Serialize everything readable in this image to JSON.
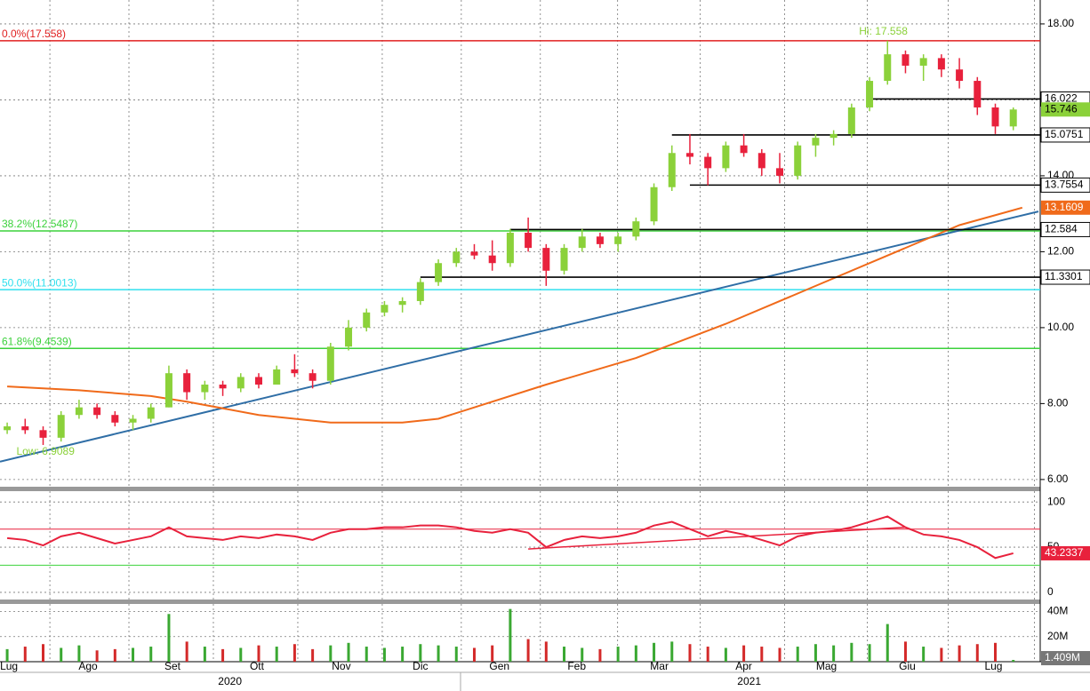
{
  "chart_data": {
    "type": "candlestick",
    "candles": [
      [
        7.3,
        7.5,
        7.2,
        7.4
      ],
      [
        7.4,
        7.6,
        7.2,
        7.3
      ],
      [
        7.3,
        7.4,
        6.91,
        7.1
      ],
      [
        7.1,
        7.8,
        7.0,
        7.7
      ],
      [
        7.7,
        8.1,
        7.6,
        7.9
      ],
      [
        7.9,
        8.0,
        7.6,
        7.7
      ],
      [
        7.7,
        7.8,
        7.4,
        7.5
      ],
      [
        7.5,
        7.7,
        7.3,
        7.6
      ],
      [
        7.6,
        8.0,
        7.5,
        7.9
      ],
      [
        7.9,
        9.0,
        7.9,
        8.8
      ],
      [
        8.8,
        8.9,
        8.1,
        8.3
      ],
      [
        8.3,
        8.6,
        8.1,
        8.5
      ],
      [
        8.5,
        8.6,
        8.2,
        8.4
      ],
      [
        8.4,
        8.8,
        8.3,
        8.7
      ],
      [
        8.7,
        8.8,
        8.4,
        8.5
      ],
      [
        8.5,
        9.0,
        8.5,
        8.9
      ],
      [
        8.9,
        9.3,
        8.7,
        8.8
      ],
      [
        8.8,
        8.9,
        8.4,
        8.6
      ],
      [
        8.6,
        9.6,
        8.5,
        9.5
      ],
      [
        9.5,
        10.2,
        9.4,
        10.0
      ],
      [
        10.0,
        10.5,
        9.9,
        10.4
      ],
      [
        10.4,
        10.7,
        10.3,
        10.6
      ],
      [
        10.6,
        10.8,
        10.4,
        10.7
      ],
      [
        10.7,
        11.3,
        10.6,
        11.2
      ],
      [
        11.2,
        11.8,
        11.1,
        11.7
      ],
      [
        11.7,
        12.1,
        11.6,
        12.0
      ],
      [
        12.0,
        12.2,
        11.8,
        11.9
      ],
      [
        11.9,
        12.3,
        11.5,
        11.7
      ],
      [
        11.7,
        12.6,
        11.6,
        12.5
      ],
      [
        12.5,
        12.9,
        12.0,
        12.1
      ],
      [
        12.1,
        12.2,
        11.1,
        11.5
      ],
      [
        11.5,
        12.2,
        11.4,
        12.1
      ],
      [
        12.1,
        12.6,
        12.0,
        12.4
      ],
      [
        12.4,
        12.5,
        12.1,
        12.2
      ],
      [
        12.2,
        12.5,
        12.0,
        12.4
      ],
      [
        12.4,
        12.9,
        12.3,
        12.8
      ],
      [
        12.8,
        13.8,
        12.7,
        13.7
      ],
      [
        13.7,
        14.8,
        13.6,
        14.6
      ],
      [
        14.6,
        15.1,
        14.3,
        14.5
      ],
      [
        14.5,
        14.6,
        13.75,
        14.2
      ],
      [
        14.2,
        14.9,
        14.1,
        14.8
      ],
      [
        14.8,
        15.1,
        14.5,
        14.6
      ],
      [
        14.6,
        14.7,
        14.0,
        14.2
      ],
      [
        14.2,
        14.6,
        13.8,
        14.0
      ],
      [
        14.0,
        14.9,
        13.9,
        14.8
      ],
      [
        14.8,
        15.1,
        14.5,
        15.0
      ],
      [
        15.0,
        15.2,
        14.8,
        15.1
      ],
      [
        15.1,
        15.9,
        15.0,
        15.8
      ],
      [
        15.8,
        16.6,
        15.7,
        16.5
      ],
      [
        16.5,
        17.558,
        16.4,
        17.2
      ],
      [
        17.2,
        17.3,
        16.7,
        16.9
      ],
      [
        16.9,
        17.2,
        16.5,
        17.1
      ],
      [
        17.1,
        17.2,
        16.6,
        16.8
      ],
      [
        16.8,
        17.1,
        16.3,
        16.5
      ],
      [
        16.5,
        16.6,
        15.6,
        15.8
      ],
      [
        15.8,
        15.9,
        15.1,
        15.3
      ],
      [
        15.3,
        15.8,
        15.2,
        15.746
      ]
    ],
    "up_color": "#8bd13a",
    "down_color": "#e8213c",
    "xlim": [
      -0.4,
      57.4
    ],
    "xticks": [
      {
        "value": 0.1,
        "label": "Lug"
      },
      {
        "value": 4.5,
        "label": "Ago"
      },
      {
        "value": 9.2,
        "label": "Set"
      },
      {
        "value": 13.9,
        "label": "Ott"
      },
      {
        "value": 18.6,
        "label": "Nov"
      },
      {
        "value": 23.0,
        "label": "Dic"
      },
      {
        "value": 27.4,
        "label": "Gen"
      },
      {
        "value": 31.7,
        "label": "Feb"
      },
      {
        "value": 36.3,
        "label": "Mar"
      },
      {
        "value": 41.0,
        "label": "Apr"
      },
      {
        "value": 45.6,
        "label": "Mag"
      },
      {
        "value": 50.1,
        "label": "Giu"
      },
      {
        "value": 54.9,
        "label": "Lug"
      }
    ],
    "years": [
      {
        "value": 12.4,
        "label": "2020"
      },
      {
        "value": 41.3,
        "label": "2021"
      }
    ],
    "ylim": [
      5.81,
      18.63
    ],
    "yticks": [
      {
        "value": 6,
        "label": "6.00"
      },
      {
        "value": 8,
        "label": "8.00"
      },
      {
        "value": 10,
        "label": "10.00"
      },
      {
        "value": 12,
        "label": "12.00"
      },
      {
        "value": 14,
        "label": "14.00"
      },
      {
        "value": 16,
        "label": "16.00"
      },
      {
        "value": 18,
        "label": "18.00"
      }
    ],
    "moving_average": {
      "color": "#f06a1a",
      "x": [
        0,
        4,
        8,
        10,
        14,
        18,
        22,
        24,
        26,
        30,
        35,
        40,
        45,
        50,
        53,
        56.5
      ],
      "values": [
        8.45,
        8.35,
        8.2,
        8.05,
        7.7,
        7.5,
        7.5,
        7.6,
        7.9,
        8.5,
        9.2,
        10.1,
        11.1,
        12.1,
        12.7,
        13.1609
      ],
      "label": "13.1609"
    },
    "trendline": {
      "color": "#2f6ea6",
      "x": [
        -0.4,
        57.4
      ],
      "values": [
        6.47,
        13.06
      ]
    },
    "fib_levels": [
      {
        "value": 17.558,
        "label": "0.0%(17.558)",
        "color": "#e02020"
      },
      {
        "value": 12.5487,
        "label": "38.2%(12.5487)",
        "color": "#3cd23c"
      },
      {
        "value": 11.0013,
        "label": "50.0%(11.0013)",
        "color": "#30e0ee"
      },
      {
        "value": 9.4539,
        "label": "61.8%(9.4539)",
        "color": "#3cd23c"
      }
    ],
    "support_levels": [
      {
        "value": 16.022,
        "label": "16.022",
        "start": 48
      },
      {
        "value": 15.0751,
        "label": "15.0751",
        "start": 37
      },
      {
        "value": 13.7554,
        "label": "13.7554",
        "start": 38
      },
      {
        "value": 12.584,
        "label": "12.584",
        "start": 28
      },
      {
        "value": 11.3301,
        "label": "11.3301",
        "start": 23
      }
    ],
    "last_price": {
      "value": 15.746,
      "label": "15.746"
    },
    "annotations": [
      {
        "text": "Hi: 17.558",
        "x": 49,
        "y": 17.558
      },
      {
        "text": "Low: 6.9089",
        "x": 2,
        "y": 6.9089
      }
    ],
    "rsi": {
      "color": "#e8213c",
      "values": [
        60,
        58,
        52,
        62,
        66,
        60,
        54,
        58,
        62,
        72,
        62,
        60,
        58,
        62,
        60,
        64,
        62,
        58,
        66,
        70,
        70,
        72,
        72,
        74,
        74,
        72,
        68,
        66,
        70,
        66,
        50,
        58,
        62,
        60,
        62,
        66,
        74,
        78,
        70,
        62,
        68,
        64,
        58,
        52,
        62,
        66,
        68,
        72,
        78,
        84,
        72,
        64,
        62,
        58,
        50,
        38,
        43.2337
      ],
      "label": "43.2337",
      "ylim": [
        -5,
        112
      ],
      "yticks": [
        0,
        50,
        100
      ],
      "overbought": 70,
      "oversold": 30,
      "trendline": {
        "x": [
          29,
          50
        ],
        "values": [
          48,
          72
        ]
      }
    },
    "volume": {
      "values": [
        10,
        12,
        14,
        11,
        13,
        9,
        10,
        11,
        12,
        38,
        16,
        12,
        10,
        11,
        13,
        12,
        14,
        10,
        13,
        15,
        12,
        11,
        12,
        14,
        13,
        12,
        11,
        13,
        42,
        18,
        16,
        12,
        11,
        10,
        12,
        13,
        15,
        16,
        14,
        12,
        11,
        13,
        12,
        11,
        12,
        14,
        13,
        15,
        14,
        30,
        16,
        12,
        11,
        13,
        14,
        15,
        1.409
      ],
      "value_labels": [
        null,
        null,
        null,
        null,
        null,
        null,
        null,
        null,
        null,
        null,
        null,
        null,
        null,
        null,
        null,
        null,
        null,
        null,
        null,
        null,
        null,
        null,
        null,
        null,
        null,
        null,
        null,
        null,
        null,
        null,
        null,
        null,
        null,
        null,
        null,
        null,
        null,
        null,
        null,
        null,
        null,
        null,
        null,
        null,
        null,
        null,
        null,
        null,
        null,
        null,
        null,
        null,
        null,
        null,
        null,
        null,
        "1.409M"
      ],
      "ylim": [
        0,
        46
      ],
      "yticks": [
        {
          "value": 20,
          "label": "20M"
        },
        {
          "value": 40,
          "label": "40M"
        }
      ]
    }
  }
}
